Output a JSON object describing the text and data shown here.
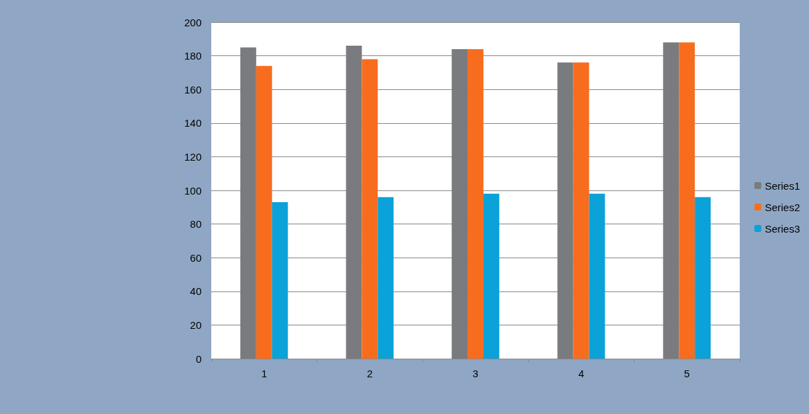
{
  "chart_data": {
    "type": "bar",
    "categories": [
      "1",
      "2",
      "3",
      "4",
      "5"
    ],
    "series": [
      {
        "name": "Series1",
        "color": "#7a7b7e",
        "values": [
          185,
          186,
          184,
          176,
          188
        ]
      },
      {
        "name": "Series2",
        "color": "#f86c1e",
        "values": [
          174,
          178,
          184,
          176,
          188
        ]
      },
      {
        "name": "Series3",
        "color": "#0aa2d8",
        "values": [
          93,
          96,
          98,
          98,
          96
        ]
      }
    ],
    "ylim": [
      0,
      200
    ],
    "yticks": [
      0,
      20,
      40,
      60,
      80,
      100,
      120,
      140,
      160,
      180,
      200
    ],
    "grid": "y",
    "legend": "right"
  }
}
